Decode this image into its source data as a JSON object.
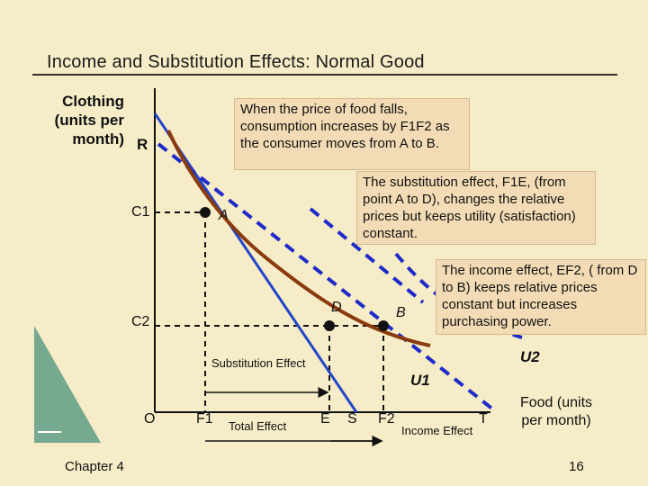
{
  "title": "Income and Substitution Effects: Normal Good",
  "y_axis_label": "Clothing\n(units per\nmonth)",
  "x_axis_label": "Food (units\nper month)",
  "origin_label": "O",
  "labels": {
    "R": "R",
    "C1": "C1",
    "C2": "C2",
    "A": "A",
    "D": "D",
    "B": "B",
    "U1": "U1",
    "U2": "U2",
    "F1": "F1",
    "E": "E",
    "S": "S",
    "F2": "F2",
    "T": "T"
  },
  "annotations": {
    "price_fall": "When the price of food falls, consumption increases by F1F2 as the consumer moves from A to B.",
    "substitution": "The substitution effect, F1E, (from point A to D), changes the relative prices but keeps utility (satisfaction) constant.",
    "income": "The income effect, EF2, ( from D to B) keeps relative prices constant but increases purchasing power."
  },
  "arrow_labels": {
    "substitution": "Substitution Effect",
    "total": "Total Effect",
    "income": "Income Effect"
  },
  "footer": {
    "chapter": "Chapter 4",
    "page": "16"
  },
  "colors": {
    "budget_line": "#2346c9",
    "indifference_curve": "#8a3a0c",
    "dashed": "#1f2bc9",
    "box_fill": "#f3dcb5",
    "background": "#f6ecc8"
  }
}
